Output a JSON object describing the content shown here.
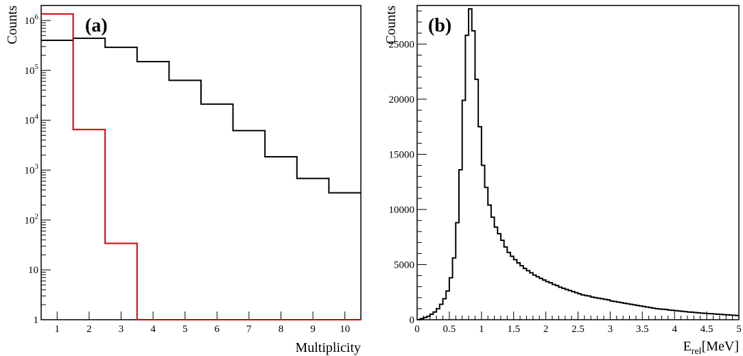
{
  "chart_data": [
    {
      "type": "histogram",
      "panel_label": "(a)",
      "xlabel": "Multiplicity",
      "ylabel": "Counts",
      "y_scale": "log",
      "xlim": [
        0.5,
        10.5
      ],
      "ylim": [
        1,
        2000000
      ],
      "x_ticks": [
        "1",
        "2",
        "3",
        "4",
        "5",
        "6",
        "7",
        "8",
        "9",
        "10"
      ],
      "y_ticks": [
        "1",
        "10",
        "10^2",
        "10^3",
        "10^4",
        "10^5",
        "10^6"
      ],
      "bin_centers": [
        1,
        2,
        3,
        4,
        5,
        6,
        7,
        8,
        9,
        10
      ],
      "series": [
        {
          "color": "#000000",
          "values": [
            400000,
            440000,
            290000,
            150000,
            63000,
            21000,
            6200,
            1850,
            680,
            350
          ]
        },
        {
          "color": "#cc0000",
          "values": [
            1350000,
            6500,
            34,
            1,
            1,
            1,
            1,
            1,
            1,
            1
          ]
        }
      ],
      "grid": false
    },
    {
      "type": "histogram",
      "panel_label": "(b)",
      "xlabel_main": "E",
      "xlabel_sub": "rel",
      "xlabel_unit": "[MeV]",
      "ylabel": "Counts",
      "xlim": [
        0,
        5
      ],
      "ylim": [
        0,
        28500
      ],
      "x_ticks": [
        "0",
        "0.5",
        "1",
        "1.5",
        "2",
        "2.5",
        "3",
        "3.5",
        "4",
        "4.5",
        "5"
      ],
      "y_ticks": [
        "0",
        "5000",
        "10000",
        "15000",
        "20000",
        "25000"
      ],
      "bin_width": 0.05,
      "series": [
        {
          "color": "#000000",
          "values": [
            0,
            100,
            200,
            300,
            500,
            700,
            1000,
            1400,
            1900,
            2600,
            3800,
            5600,
            8800,
            13600,
            19900,
            25800,
            28200,
            26200,
            21800,
            17500,
            14000,
            12000,
            10400,
            9300,
            8400,
            7800,
            7200,
            6600,
            6100,
            5750,
            5450,
            5150,
            4900,
            4650,
            4450,
            4250,
            4050,
            3900,
            3750,
            3600,
            3450,
            3350,
            3200,
            3100,
            2950,
            2850,
            2750,
            2650,
            2550,
            2450,
            2350,
            2250,
            2200,
            2150,
            2050,
            2000,
            1950,
            1900,
            1850,
            1800,
            1700,
            1650,
            1600,
            1550,
            1500,
            1450,
            1400,
            1350,
            1300,
            1250,
            1200,
            1150,
            1100,
            1050,
            1000,
            970,
            950,
            920,
            880,
            850,
            820,
            790,
            760,
            730,
            700,
            680,
            650,
            630,
            600,
            580,
            560,
            540,
            520,
            500,
            480,
            460,
            440,
            420,
            400,
            380
          ]
        }
      ],
      "grid": false
    }
  ]
}
